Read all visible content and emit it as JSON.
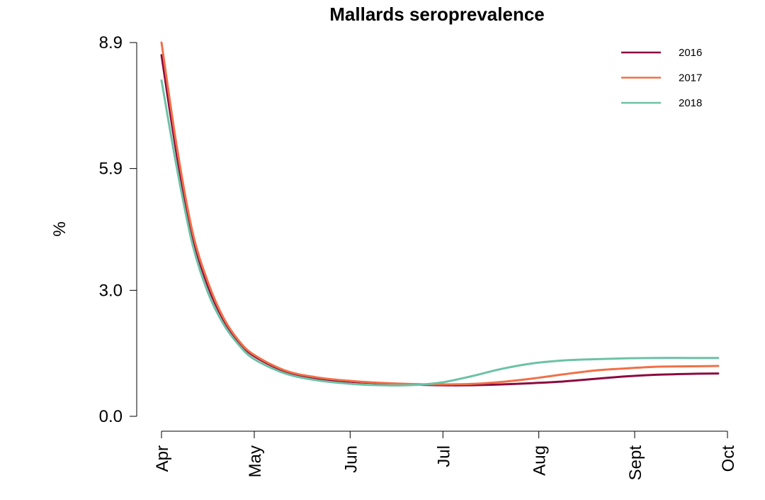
{
  "chart_data": {
    "type": "line",
    "title": "Mallards seroprevalence",
    "xlabel": "",
    "ylabel": "%",
    "x_ticks": [
      {
        "label": "Apr",
        "x": 0
      },
      {
        "label": "May",
        "x": 30
      },
      {
        "label": "Jun",
        "x": 61
      },
      {
        "label": "Jul",
        "x": 91
      },
      {
        "label": "Aug",
        "x": 122
      },
      {
        "label": "Sept",
        "x": 153
      },
      {
        "label": "Oct",
        "x": 183
      }
    ],
    "y_ticks": [
      "0.0",
      "3.0",
      "5.9",
      "8.9"
    ],
    "xlim": [
      0,
      183
    ],
    "ylim": [
      0,
      8.9
    ],
    "grid": false,
    "legend_position": "top-right",
    "series": [
      {
        "name": "2016",
        "color": "#8b0a3f",
        "x": [
          0,
          5,
          10,
          15,
          20,
          25,
          30,
          40,
          50,
          60,
          70,
          80,
          90,
          100,
          110,
          120,
          130,
          140,
          150,
          160,
          170,
          180
        ],
        "y": [
          8.6,
          6.2,
          4.3,
          3.1,
          2.3,
          1.77,
          1.43,
          1.07,
          0.91,
          0.83,
          0.79,
          0.76,
          0.74,
          0.74,
          0.76,
          0.79,
          0.83,
          0.89,
          0.95,
          0.99,
          1.01,
          1.02
        ]
      },
      {
        "name": "2017",
        "color": "#f07048",
        "x": [
          0,
          5,
          10,
          15,
          20,
          25,
          30,
          40,
          50,
          60,
          70,
          80,
          90,
          100,
          110,
          120,
          130,
          140,
          150,
          160,
          170,
          180
        ],
        "y": [
          8.9,
          6.4,
          4.4,
          3.2,
          2.35,
          1.8,
          1.46,
          1.09,
          0.93,
          0.85,
          0.8,
          0.77,
          0.76,
          0.77,
          0.82,
          0.9,
          1.0,
          1.09,
          1.14,
          1.18,
          1.19,
          1.2
        ]
      },
      {
        "name": "2018",
        "color": "#6cc2a6",
        "x": [
          0,
          5,
          10,
          15,
          20,
          25,
          30,
          40,
          50,
          60,
          70,
          80,
          90,
          100,
          110,
          120,
          130,
          140,
          150,
          160,
          170,
          180
        ],
        "y": [
          8.0,
          5.9,
          4.1,
          2.95,
          2.2,
          1.7,
          1.36,
          1.02,
          0.86,
          0.78,
          0.74,
          0.74,
          0.8,
          0.95,
          1.13,
          1.26,
          1.33,
          1.36,
          1.38,
          1.39,
          1.39,
          1.39
        ]
      }
    ]
  }
}
